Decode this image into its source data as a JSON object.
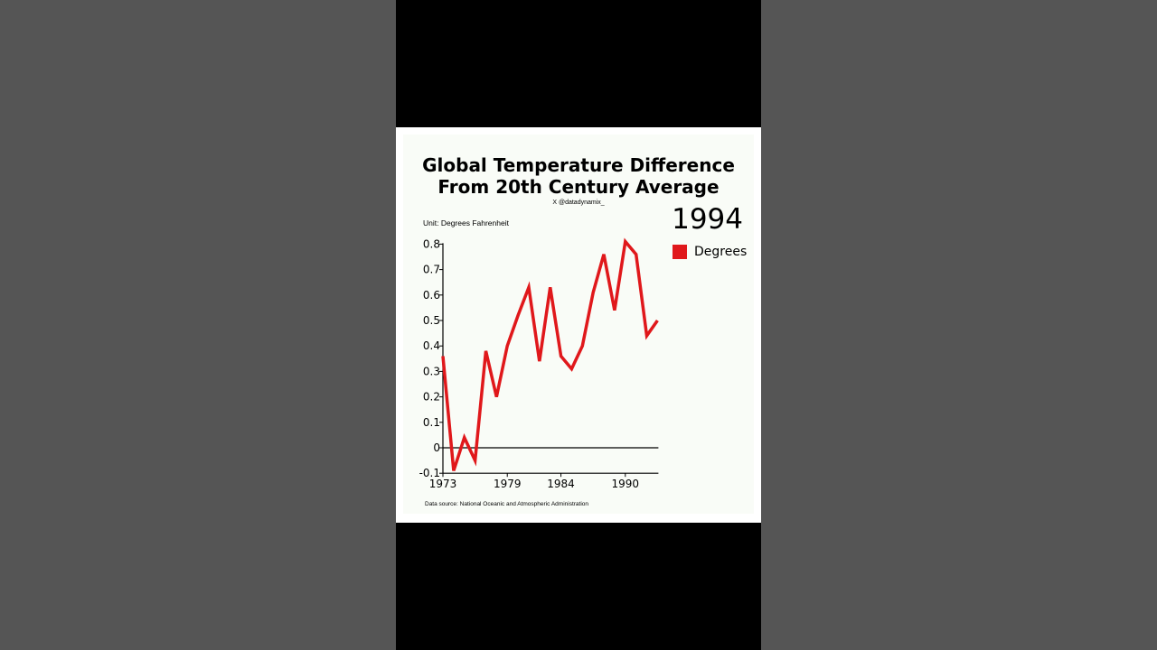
{
  "chart_data": {
    "type": "line",
    "title": "Global Temperature Difference From 20th Century Average",
    "credit": "X @datadynamix_",
    "unit_label": "Unit: Degrees Fahrenheit",
    "current_year": "1994",
    "source": "Data source: National Oceanic and Atmospheric Administration",
    "x": [
      1973,
      1974,
      1975,
      1976,
      1977,
      1978,
      1979,
      1980,
      1981,
      1982,
      1983,
      1984,
      1985,
      1986,
      1987,
      1988,
      1989,
      1990,
      1991,
      1992,
      1993
    ],
    "series": [
      {
        "name": "Degrees",
        "color": "#e0181b",
        "values": [
          0.36,
          -0.09,
          0.04,
          -0.05,
          0.38,
          0.2,
          0.4,
          0.52,
          0.63,
          0.34,
          0.63,
          0.36,
          0.31,
          0.4,
          0.61,
          0.76,
          0.54,
          0.81,
          0.76,
          0.44,
          0.5
        ]
      }
    ],
    "x_ticks": [
      "1973",
      "1979",
      "1984",
      "1990"
    ],
    "y_ticks": [
      "-0.1",
      "0",
      "0.1",
      "0.2",
      "0.3",
      "0.4",
      "0.5",
      "0.6",
      "0.7",
      "0.8"
    ],
    "ylim": [
      -0.1,
      0.8
    ],
    "legend_position": "top-right",
    "grid": false
  }
}
